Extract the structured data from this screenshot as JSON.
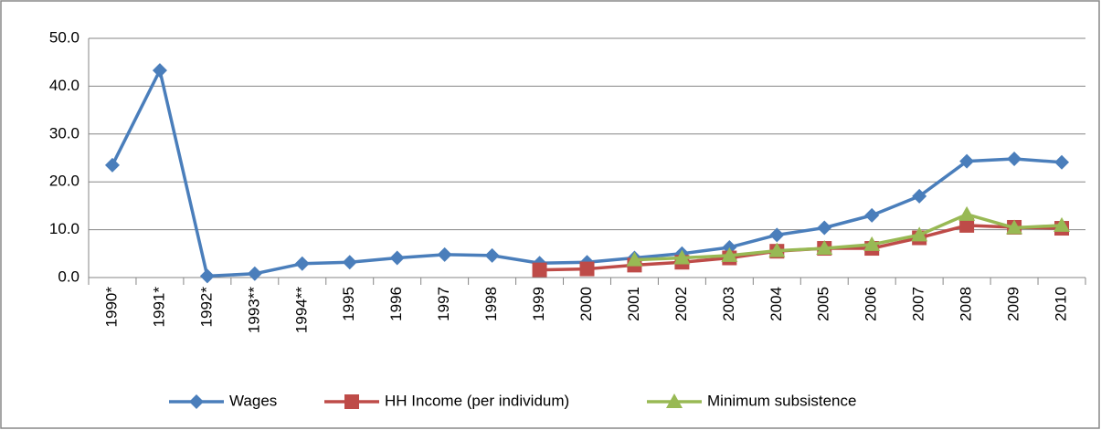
{
  "chart_data": {
    "type": "line",
    "categories": [
      "1990*",
      "1991*",
      "1992*",
      "1993**",
      "1994**",
      "1995",
      "1996",
      "1997",
      "1998",
      "1999",
      "2000",
      "2001",
      "2002",
      "2003",
      "2004",
      "2005",
      "2006",
      "2007",
      "2008",
      "2009",
      "2010"
    ],
    "series": [
      {
        "name": "Wages",
        "color": "#4a7ebb",
        "marker": "diamond",
        "values": [
          23.5,
          43.3,
          0.3,
          0.8,
          2.9,
          3.2,
          4.1,
          4.8,
          4.6,
          3.0,
          3.2,
          4.1,
          5.0,
          6.3,
          8.9,
          10.4,
          13.0,
          17.0,
          24.3,
          24.8,
          24.1
        ]
      },
      {
        "name": "HH Income (per individum)",
        "color": "#be4b48",
        "marker": "square",
        "values": [
          null,
          null,
          null,
          null,
          null,
          null,
          null,
          null,
          null,
          1.6,
          1.8,
          2.6,
          3.2,
          4.1,
          5.5,
          6.1,
          6.1,
          8.3,
          10.9,
          10.5,
          10.3
        ]
      },
      {
        "name": "Minimum subsistence",
        "color": "#98b954",
        "marker": "triangle",
        "values": [
          null,
          null,
          null,
          null,
          null,
          null,
          null,
          null,
          null,
          null,
          null,
          3.7,
          4.1,
          4.6,
          5.6,
          6.1,
          6.9,
          8.9,
          13.2,
          10.4,
          10.9
        ]
      }
    ],
    "ylim": [
      0,
      50
    ],
    "yticks": [
      {
        "value": 0,
        "label": "0.0"
      },
      {
        "value": 10,
        "label": "10.0"
      },
      {
        "value": 20,
        "label": "20.0"
      },
      {
        "value": 30,
        "label": "30.0"
      },
      {
        "value": 40,
        "label": "40.0"
      },
      {
        "value": 50,
        "label": "50.0"
      }
    ],
    "grid": true,
    "legend": "bottom"
  }
}
